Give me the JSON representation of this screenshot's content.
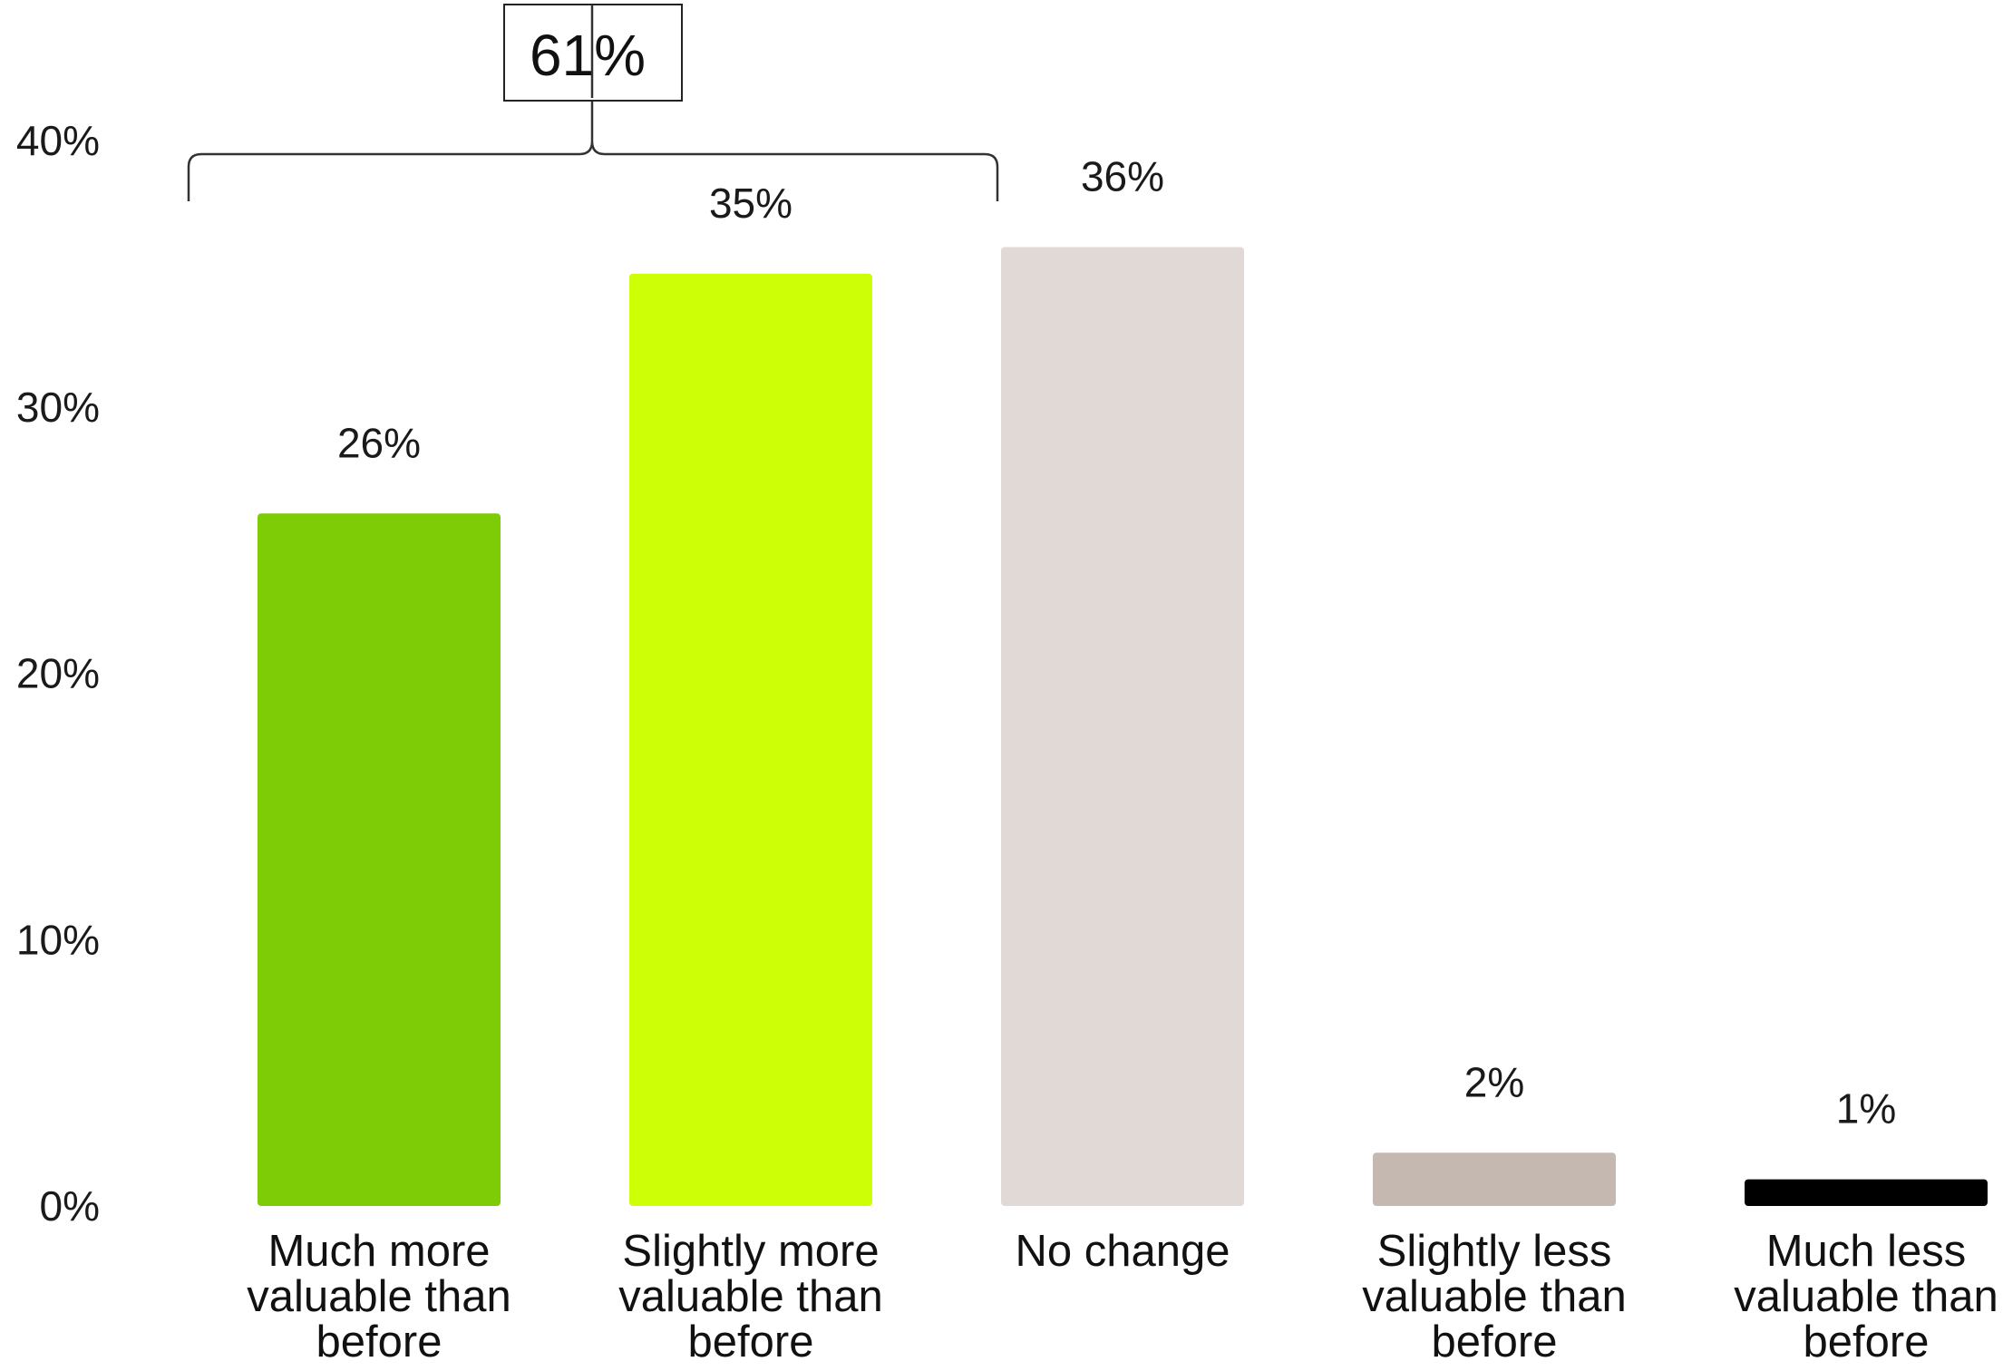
{
  "chart_data": {
    "type": "bar",
    "categories": [
      [
        "Much more",
        "valuable than",
        "before"
      ],
      [
        "Slightly more",
        "valuable than",
        "before"
      ],
      [
        "No change"
      ],
      [
        "Slightly less",
        "valuable than",
        "before"
      ],
      [
        "Much less",
        "valuable than",
        "before"
      ]
    ],
    "values": [
      26,
      35,
      36,
      2,
      1
    ],
    "data_labels": [
      "26%",
      "35%",
      "36%",
      "2%",
      "1%"
    ],
    "colors": [
      "#7dcc06",
      "#cdff07",
      "#e0d9d6",
      "#c4b8b0",
      "#000000"
    ],
    "ylim": [
      0,
      40
    ],
    "yticks": [
      0,
      10,
      20,
      30,
      40
    ],
    "ytick_labels": [
      "0%",
      "10%",
      "20%",
      "30%",
      "40%"
    ],
    "grid": false,
    "legend": "none",
    "annotation": {
      "text": "61%",
      "spans_categories": [
        0,
        1
      ]
    }
  }
}
